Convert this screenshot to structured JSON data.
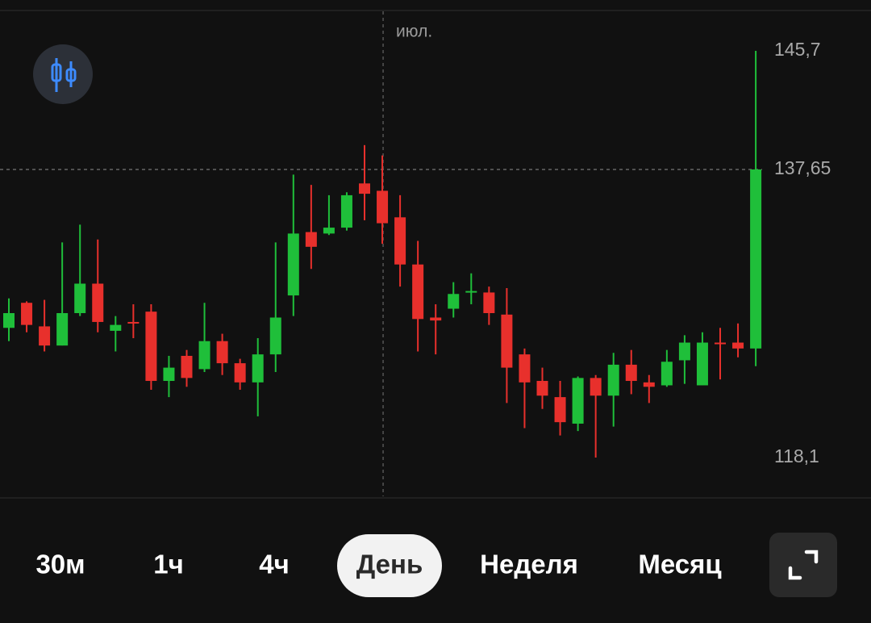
{
  "chart_data": {
    "type": "candlestick",
    "categories": [
      null,
      null,
      null,
      null,
      null,
      null,
      null,
      null,
      null,
      null,
      null,
      null,
      null,
      null,
      null,
      null,
      null,
      null,
      null,
      null,
      null,
      "июл.",
      null,
      null,
      null,
      null,
      null,
      null,
      null,
      null,
      null,
      null,
      null,
      null,
      null,
      null,
      null,
      null,
      null,
      null,
      null,
      null,
      null
    ],
    "open": [
      126.9,
      128.6,
      127.0,
      125.7,
      127.9,
      129.9,
      126.7,
      127.3,
      128.0,
      123.3,
      125.0,
      124.1,
      126.0,
      124.5,
      123.2,
      125.1,
      129.1,
      133.4,
      133.3,
      133.7,
      136.7,
      136.2,
      134.4,
      131.2,
      127.6,
      128.2,
      129.3,
      129.3,
      127.8,
      125.1,
      123.3,
      122.2,
      120.4,
      123.5,
      122.3,
      124.4,
      123.2,
      123.0,
      124.7,
      123.0,
      125.9,
      125.9,
      125.5
    ],
    "high": [
      128.9,
      128.7,
      128.8,
      132.7,
      133.9,
      132.9,
      127.7,
      128.5,
      128.5,
      125.0,
      125.4,
      128.6,
      126.5,
      124.8,
      126.2,
      132.7,
      137.3,
      136.6,
      135.9,
      136.1,
      139.3,
      138.6,
      135.9,
      132.8,
      128.5,
      130.0,
      130.6,
      129.7,
      129.6,
      125.5,
      124.2,
      123.3,
      123.6,
      123.7,
      125.2,
      125.4,
      123.7,
      125.4,
      126.4,
      126.6,
      126.9,
      127.2,
      145.7
    ],
    "low": [
      126.0,
      126.6,
      125.3,
      125.7,
      127.7,
      126.6,
      125.3,
      126.2,
      122.7,
      122.2,
      122.9,
      123.9,
      123.7,
      122.7,
      120.9,
      123.9,
      127.7,
      130.9,
      133.2,
      133.5,
      134.2,
      132.6,
      129.7,
      125.3,
      125.1,
      127.6,
      128.5,
      127.1,
      121.8,
      120.1,
      121.4,
      119.6,
      119.9,
      118.1,
      120.2,
      122.4,
      121.8,
      122.9,
      123.1,
      123.0,
      123.4,
      124.9,
      124.3
    ],
    "close": [
      127.9,
      127.1,
      125.7,
      127.9,
      129.9,
      127.3,
      127.1,
      127.2,
      123.3,
      124.2,
      123.5,
      126.0,
      124.5,
      123.2,
      125.1,
      127.6,
      133.3,
      132.4,
      133.7,
      135.9,
      136.0,
      134.0,
      131.2,
      127.5,
      127.4,
      129.2,
      129.4,
      127.9,
      124.2,
      123.2,
      122.3,
      120.5,
      123.5,
      122.3,
      124.4,
      123.3,
      122.9,
      124.6,
      125.9,
      125.9,
      125.8,
      125.5,
      137.65
    ],
    "up_color": "#1fbf3a",
    "down_color": "#e8302c",
    "ylim": [
      115.47,
      148.38
    ],
    "yticks": [
      {
        "value": 145.7,
        "label": "145,7"
      },
      {
        "value": 118.1,
        "label": "118,1"
      }
    ],
    "last_price": {
      "value": 137.65,
      "label": "137,65"
    }
  },
  "timeframes": [
    {
      "label": "30м",
      "selected": false
    },
    {
      "label": "1ч",
      "selected": false
    },
    {
      "label": "4ч",
      "selected": false
    },
    {
      "label": "День",
      "selected": true
    },
    {
      "label": "Неделя",
      "selected": false
    },
    {
      "label": "Месяц",
      "selected": false
    }
  ]
}
